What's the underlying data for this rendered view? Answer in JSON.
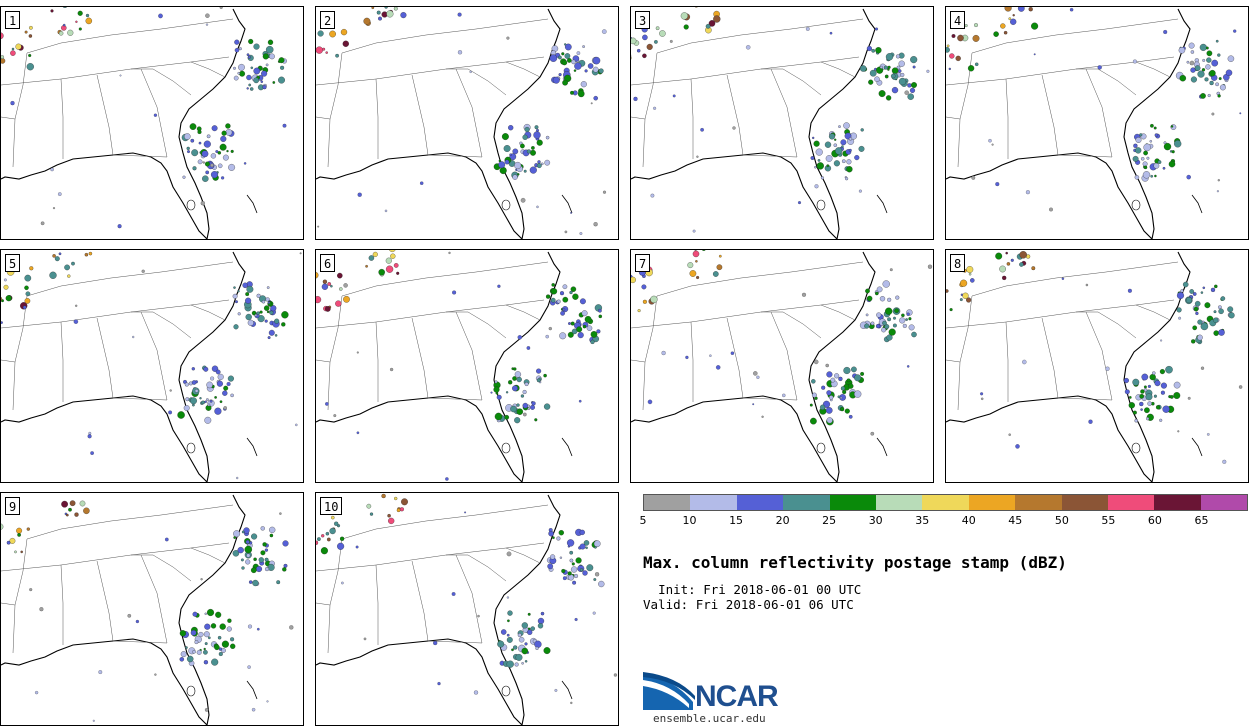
{
  "figure": {
    "title": "Max. column reflectivity postage stamp (dBZ)",
    "init_label": "Init:",
    "init_value": "Fri 2018-06-01 00 UTC",
    "valid_label": "Valid:",
    "valid_value": "Fri 2018-06-01 06 UTC",
    "source": "ensemble.ucar.edu",
    "logo_text": "NCAR"
  },
  "members": [
    "1",
    "2",
    "3",
    "4",
    "5",
    "6",
    "7",
    "8",
    "9",
    "10"
  ],
  "colorbar": {
    "ticks": [
      "5",
      "10",
      "15",
      "20",
      "25",
      "30",
      "35",
      "40",
      "45",
      "50",
      "55",
      "60",
      "65"
    ],
    "colors": [
      "#a0a0a0",
      "#b3bbe8",
      "#5560d6",
      "#4a9090",
      "#0a8a0a",
      "#b8dcb8",
      "#efd85a",
      "#eca623",
      "#b5782e",
      "#8b5536",
      "#ef4c7a",
      "#6a1535",
      "#b04aaa"
    ]
  },
  "chart_data": {
    "type": "map",
    "variable": "Maximum column reflectivity",
    "units": "dBZ",
    "region": "Southeastern United States",
    "ensemble_members": 10,
    "color_scale_dBZ": [
      5,
      10,
      15,
      20,
      25,
      30,
      35,
      40,
      45,
      50,
      55,
      60,
      65
    ]
  }
}
